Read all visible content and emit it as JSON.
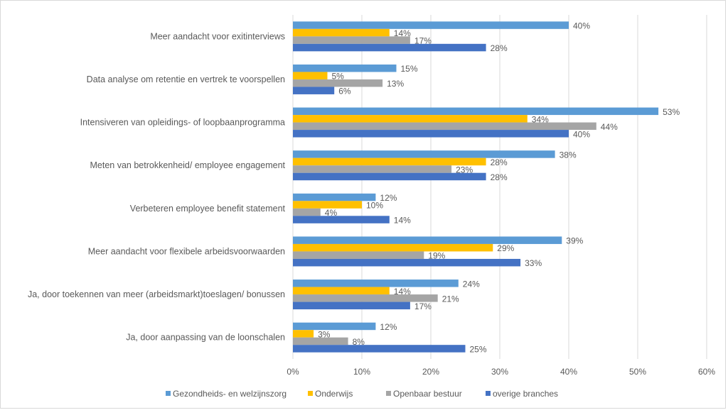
{
  "chart_data": {
    "type": "bar",
    "orientation": "horizontal",
    "categories": [
      "Meer aandacht voor exitinterviews",
      "Data analyse om retentie en vertrek te voorspellen",
      "Intensiveren van opleidings- of loopbaanprogramma",
      "Meten van betrokkenheid/ employee engagement",
      "Verbeteren employee benefit statement",
      "Meer aandacht voor flexibele arbeidsvoorwaarden",
      "Ja, door toekennen van meer (arbeidsmarkt)toeslagen/ bonussen",
      "Ja, door aanpassing van de loonschalen"
    ],
    "series": [
      {
        "name": "Gezondheids- en welzijnszorg",
        "color": "#5b9bd5",
        "values": [
          40,
          15,
          53,
          38,
          12,
          39,
          24,
          12
        ]
      },
      {
        "name": "Onderwijs",
        "color": "#ffc000",
        "values": [
          14,
          5,
          34,
          28,
          10,
          29,
          14,
          3
        ]
      },
      {
        "name": "Openbaar bestuur",
        "color": "#a5a5a5",
        "values": [
          17,
          13,
          44,
          23,
          4,
          19,
          21,
          8
        ]
      },
      {
        "name": "overige branches",
        "color": "#4472c4",
        "values": [
          28,
          6,
          40,
          28,
          14,
          33,
          17,
          25
        ]
      }
    ],
    "xlim": [
      0,
      60
    ],
    "xticks": [
      "0%",
      "10%",
      "20%",
      "30%",
      "40%",
      "50%",
      "60%"
    ],
    "value_suffix": "%",
    "grid": true,
    "legend": "bottom"
  }
}
